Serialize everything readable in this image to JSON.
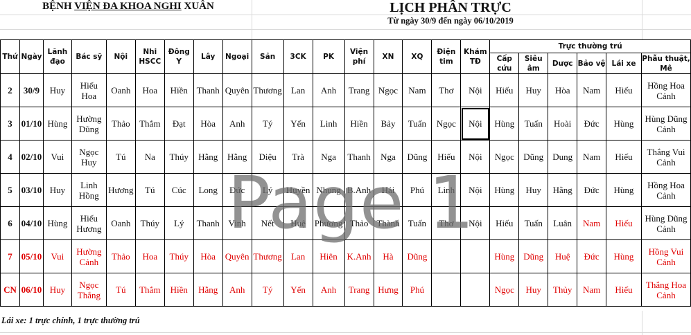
{
  "header": {
    "hospital_name_pre": "BỆNH ",
    "hospital_name_underlined": "VIỆN ĐA KHOA NGHI",
    "hospital_name_post": " XUÂN",
    "title": "LỊCH PHÂN TRỰC",
    "subtitle": "Từ ngày 30/9 đến ngày 06/10/2019"
  },
  "columns": {
    "thu": "Thứ",
    "ngay": "Ngày",
    "main": [
      "Lãnh\nđạo",
      "Bác sỹ",
      "Nội",
      "Nhi\nHSCC",
      "Đông\nY",
      "Lây",
      "Ngoại",
      "Sản",
      "3CK",
      "PK",
      "Viện\nphí",
      "XN",
      "XQ",
      "Điện\ntim",
      "Khám\nTĐ"
    ],
    "group_label": "Trực thường trú",
    "group": [
      "Cấp\ncứu",
      "Siêu\nâm",
      "Dược",
      "Bảo vệ",
      "Lái xe",
      "Phẫu thuật,\nMê"
    ]
  },
  "colors": {
    "weekend_text": "#e00000",
    "text": "#111111"
  },
  "rows": [
    {
      "thu": "2",
      "ngay": "30/9",
      "red": false,
      "cells": [
        "Huy",
        "Hiếu\nHoa",
        "Oanh",
        "Hoa",
        "Hiền",
        "Thanh",
        "Quyên",
        "Thương",
        "Lan",
        "Anh",
        "Trang",
        "Ngọc",
        "Nam",
        "Thơ",
        "Nội",
        "Hiếu",
        "Huy",
        "Hòa",
        "Nam",
        "Hiếu",
        "Hồng Hoa\nCảnh"
      ]
    },
    {
      "thu": "3",
      "ngay": "01/10",
      "red": false,
      "selected_cell": 14,
      "cells": [
        "Hùng",
        "Hường\nDũng",
        "Thảo",
        "Thắm",
        "Đạt",
        "Hòa",
        "Anh",
        "Tý",
        "Yến",
        "Linh",
        "Hiền",
        "Bảy",
        "Tuấn",
        "Ngọc",
        "Nội",
        "Hùng",
        "Tuấn",
        "Hoài",
        "Đức",
        "Hùng",
        "Hùng Dũng\nCảnh"
      ]
    },
    {
      "thu": "4",
      "ngay": "02/10",
      "red": false,
      "cells": [
        "Vui",
        "Ngọc\nHuy",
        "Tú",
        "Na",
        "Thúy",
        "Hằng",
        "Hằng",
        "Diệu",
        "Trà",
        "Nga",
        "Thanh",
        "Nga",
        "Dũng",
        "Hiếu",
        "Nội",
        "Ngọc",
        "Dũng",
        "Dung",
        "Nam",
        "Hiếu",
        "Thắng Vui\nCảnh"
      ]
    },
    {
      "thu": "5",
      "ngay": "03/10",
      "red": false,
      "cells": [
        "Huy",
        "Linh\nHồng",
        "Hương",
        "Tú",
        "Cúc",
        "Long",
        "Đức",
        "Lý",
        "Huyền",
        "Nhung",
        "B.Anh",
        "Hải",
        "Phú",
        "Linh",
        "Nội",
        "Hùng",
        "Huy",
        "Hằng",
        "Đức",
        "Hùng",
        "Hồng Hoa\nCảnh"
      ]
    },
    {
      "thu": "6",
      "ngay": "04/10",
      "red": false,
      "red_cells": [
        18,
        19
      ],
      "cells": [
        "Hùng",
        "Hiếu\nHương",
        "Oanh",
        "Thúy",
        "Lý",
        "Thanh",
        "Vinh",
        "Nết",
        "Huệ",
        "Phương",
        "Thảo",
        "Thành",
        "Tuấn",
        "Thơ",
        "Nội",
        "Hiếu",
        "Tuấn",
        "Luân",
        "Nam",
        "Hiếu",
        "Hùng Dũng\nCảnh"
      ]
    },
    {
      "thu": "7",
      "ngay": "05/10",
      "red": true,
      "cells": [
        "Vui",
        "Hường\nCảnh",
        "Thảo",
        "Hoa",
        "Thúy",
        "Hòa",
        "Quyên",
        "Thương",
        "Lan",
        "Hiên",
        "K.Anh",
        "Hà",
        "Dũng",
        "",
        "",
        "Hùng",
        "Dũng",
        "Huệ",
        "Đức",
        "Hùng",
        "Hồng Vui\nCảnh"
      ]
    },
    {
      "thu": "CN",
      "ngay": "06/10",
      "red": true,
      "cells": [
        "Huy",
        "Ngọc\nThắng",
        "Tú",
        "Thắm",
        "Hiền",
        "Hằng",
        "Anh",
        "Tý",
        "Yến",
        "Anh",
        "Trang",
        "Hưng",
        "Phú",
        "",
        "",
        "Ngọc",
        "Huy",
        "Thủy",
        "Nam",
        "Hiếu",
        "Thắng Hoa\nCảnh"
      ]
    }
  ],
  "note": "Lái xe: 1 trực chính, 1 trực thường trú",
  "watermark": "Page 1"
}
